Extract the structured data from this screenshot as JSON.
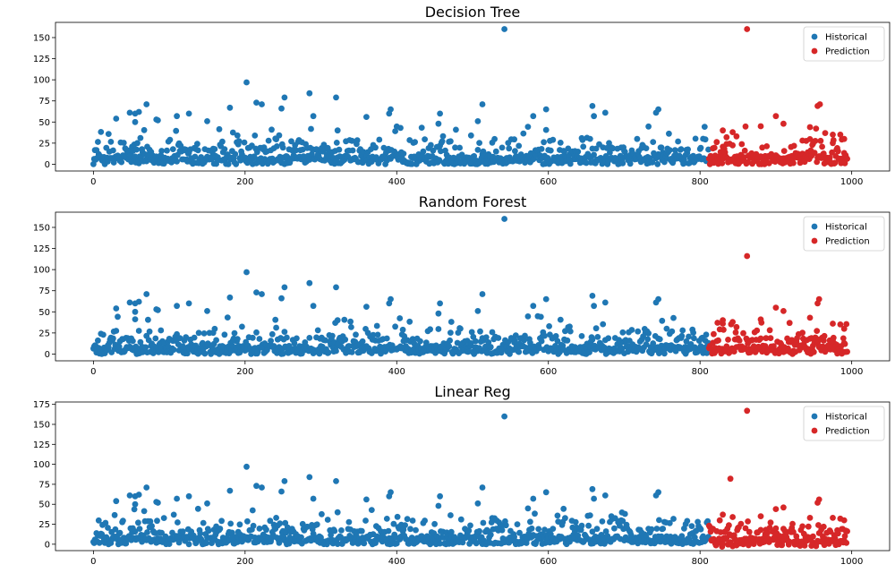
{
  "chart_data": [
    {
      "type": "scatter",
      "title": "Decision Tree",
      "xlim": [
        -50,
        1050
      ],
      "ylim": [
        -8,
        168
      ],
      "xticks": [
        0,
        200,
        400,
        600,
        800,
        1000
      ],
      "yticks": [
        0,
        25,
        50,
        75,
        100,
        125,
        150
      ],
      "legend": "top-right",
      "series": [
        {
          "name": "Historical",
          "color": "#1f77b4",
          "x_range": [
            0,
            812
          ],
          "points": [
            [
              542,
              160
            ],
            [
              202,
              97
            ],
            [
              285,
              84
            ],
            [
              320,
              79
            ],
            [
              252,
              79
            ],
            [
              215,
              73
            ],
            [
              222,
              71
            ],
            [
              513,
              71
            ],
            [
              70,
              71
            ],
            [
              658,
              69
            ],
            [
              180,
              67
            ],
            [
              248,
              66
            ],
            [
              745,
              65
            ],
            [
              392,
              65
            ],
            [
              597,
              65
            ],
            [
              390,
              60
            ],
            [
              126,
              60
            ],
            [
              742,
              61
            ],
            [
              60,
              62
            ],
            [
              55,
              60
            ],
            [
              48,
              61
            ],
            [
              675,
              61
            ],
            [
              457,
              60
            ],
            [
              290,
              57
            ],
            [
              110,
              57
            ],
            [
              580,
              57
            ],
            [
              660,
              57
            ],
            [
              83,
              53
            ],
            [
              85,
              52
            ],
            [
              150,
              51
            ],
            [
              507,
              51
            ],
            [
              30,
              54
            ],
            [
              360,
              56
            ],
            [
              322,
              40
            ],
            [
              455,
              48
            ],
            [
              55,
              50
            ]
          ]
        },
        {
          "name": "Prediction",
          "color": "#d62728",
          "x_range": [
            812,
            995
          ],
          "points": [
            [
              862,
              160
            ],
            [
              958,
              71
            ],
            [
              955,
              69
            ],
            [
              900,
              57
            ],
            [
              910,
              48
            ],
            [
              945,
              44
            ],
            [
              880,
              45
            ],
            [
              830,
              40
            ],
            [
              843,
              38
            ],
            [
              848,
              33
            ],
            [
              835,
              32
            ],
            [
              975,
              35
            ],
            [
              985,
              35
            ],
            [
              990,
              30
            ],
            [
              935,
              28
            ]
          ]
        }
      ]
    },
    {
      "type": "scatter",
      "title": "Random Forest",
      "xlim": [
        -50,
        1050
      ],
      "ylim": [
        -8,
        168
      ],
      "xticks": [
        0,
        200,
        400,
        600,
        800,
        1000
      ],
      "yticks": [
        0,
        25,
        50,
        75,
        100,
        125,
        150
      ],
      "legend": "top-right",
      "series": [
        {
          "name": "Historical",
          "color": "#1f77b4",
          "x_range": [
            0,
            812
          ],
          "points": [
            [
              542,
              160
            ],
            [
              202,
              97
            ],
            [
              285,
              84
            ],
            [
              320,
              79
            ],
            [
              252,
              79
            ],
            [
              215,
              73
            ],
            [
              222,
              71
            ],
            [
              513,
              71
            ],
            [
              70,
              71
            ],
            [
              658,
              69
            ],
            [
              180,
              67
            ],
            [
              248,
              66
            ],
            [
              745,
              65
            ],
            [
              392,
              65
            ],
            [
              597,
              65
            ],
            [
              390,
              60
            ],
            [
              126,
              60
            ],
            [
              742,
              61
            ],
            [
              60,
              62
            ],
            [
              55,
              60
            ],
            [
              48,
              61
            ],
            [
              675,
              61
            ],
            [
              457,
              60
            ],
            [
              290,
              57
            ],
            [
              110,
              57
            ],
            [
              580,
              57
            ],
            [
              660,
              57
            ],
            [
              83,
              53
            ],
            [
              85,
              52
            ],
            [
              150,
              51
            ],
            [
              507,
              51
            ],
            [
              30,
              54
            ],
            [
              360,
              56
            ],
            [
              322,
              40
            ],
            [
              455,
              48
            ],
            [
              55,
              50
            ]
          ]
        },
        {
          "name": "Prediction",
          "color": "#d62728",
          "x_range": [
            812,
            995
          ],
          "points": [
            [
              862,
              116
            ],
            [
              957,
              65
            ],
            [
              955,
              60
            ],
            [
              900,
              55
            ],
            [
              910,
              51
            ],
            [
              945,
              43
            ],
            [
              880,
              41
            ],
            [
              830,
              40
            ],
            [
              843,
              38
            ],
            [
              848,
              32
            ],
            [
              975,
              36
            ],
            [
              985,
              35
            ],
            [
              990,
              30
            ]
          ]
        }
      ]
    },
    {
      "type": "scatter",
      "title": "Linear Reg",
      "xlim": [
        -50,
        1050
      ],
      "ylim": [
        -8,
        178
      ],
      "xticks": [
        0,
        200,
        400,
        600,
        800,
        1000
      ],
      "yticks": [
        0,
        25,
        50,
        75,
        100,
        125,
        150,
        175
      ],
      "legend": "top-right",
      "series": [
        {
          "name": "Historical",
          "color": "#1f77b4",
          "x_range": [
            0,
            812
          ],
          "points": [
            [
              542,
              160
            ],
            [
              202,
              97
            ],
            [
              285,
              84
            ],
            [
              320,
              79
            ],
            [
              252,
              79
            ],
            [
              215,
              73
            ],
            [
              222,
              71
            ],
            [
              513,
              71
            ],
            [
              70,
              71
            ],
            [
              658,
              69
            ],
            [
              180,
              67
            ],
            [
              248,
              66
            ],
            [
              745,
              65
            ],
            [
              392,
              65
            ],
            [
              597,
              65
            ],
            [
              390,
              60
            ],
            [
              126,
              60
            ],
            [
              742,
              61
            ],
            [
              60,
              62
            ],
            [
              55,
              60
            ],
            [
              48,
              61
            ],
            [
              675,
              61
            ],
            [
              457,
              60
            ],
            [
              290,
              57
            ],
            [
              110,
              57
            ],
            [
              580,
              57
            ],
            [
              660,
              57
            ],
            [
              83,
              53
            ],
            [
              85,
              52
            ],
            [
              150,
              51
            ],
            [
              507,
              51
            ],
            [
              30,
              54
            ],
            [
              360,
              56
            ],
            [
              322,
              40
            ],
            [
              455,
              48
            ],
            [
              55,
              50
            ]
          ]
        },
        {
          "name": "Prediction",
          "color": "#d62728",
          "x_range": [
            812,
            995
          ],
          "points": [
            [
              862,
              167
            ],
            [
              840,
              82
            ],
            [
              957,
              56
            ],
            [
              955,
              52
            ],
            [
              910,
              46
            ],
            [
              900,
              44
            ],
            [
              945,
              33
            ],
            [
              880,
              35
            ],
            [
              830,
              37
            ],
            [
              843,
              34
            ],
            [
              975,
              33
            ],
            [
              985,
              32
            ],
            [
              990,
              30
            ]
          ]
        }
      ]
    }
  ]
}
